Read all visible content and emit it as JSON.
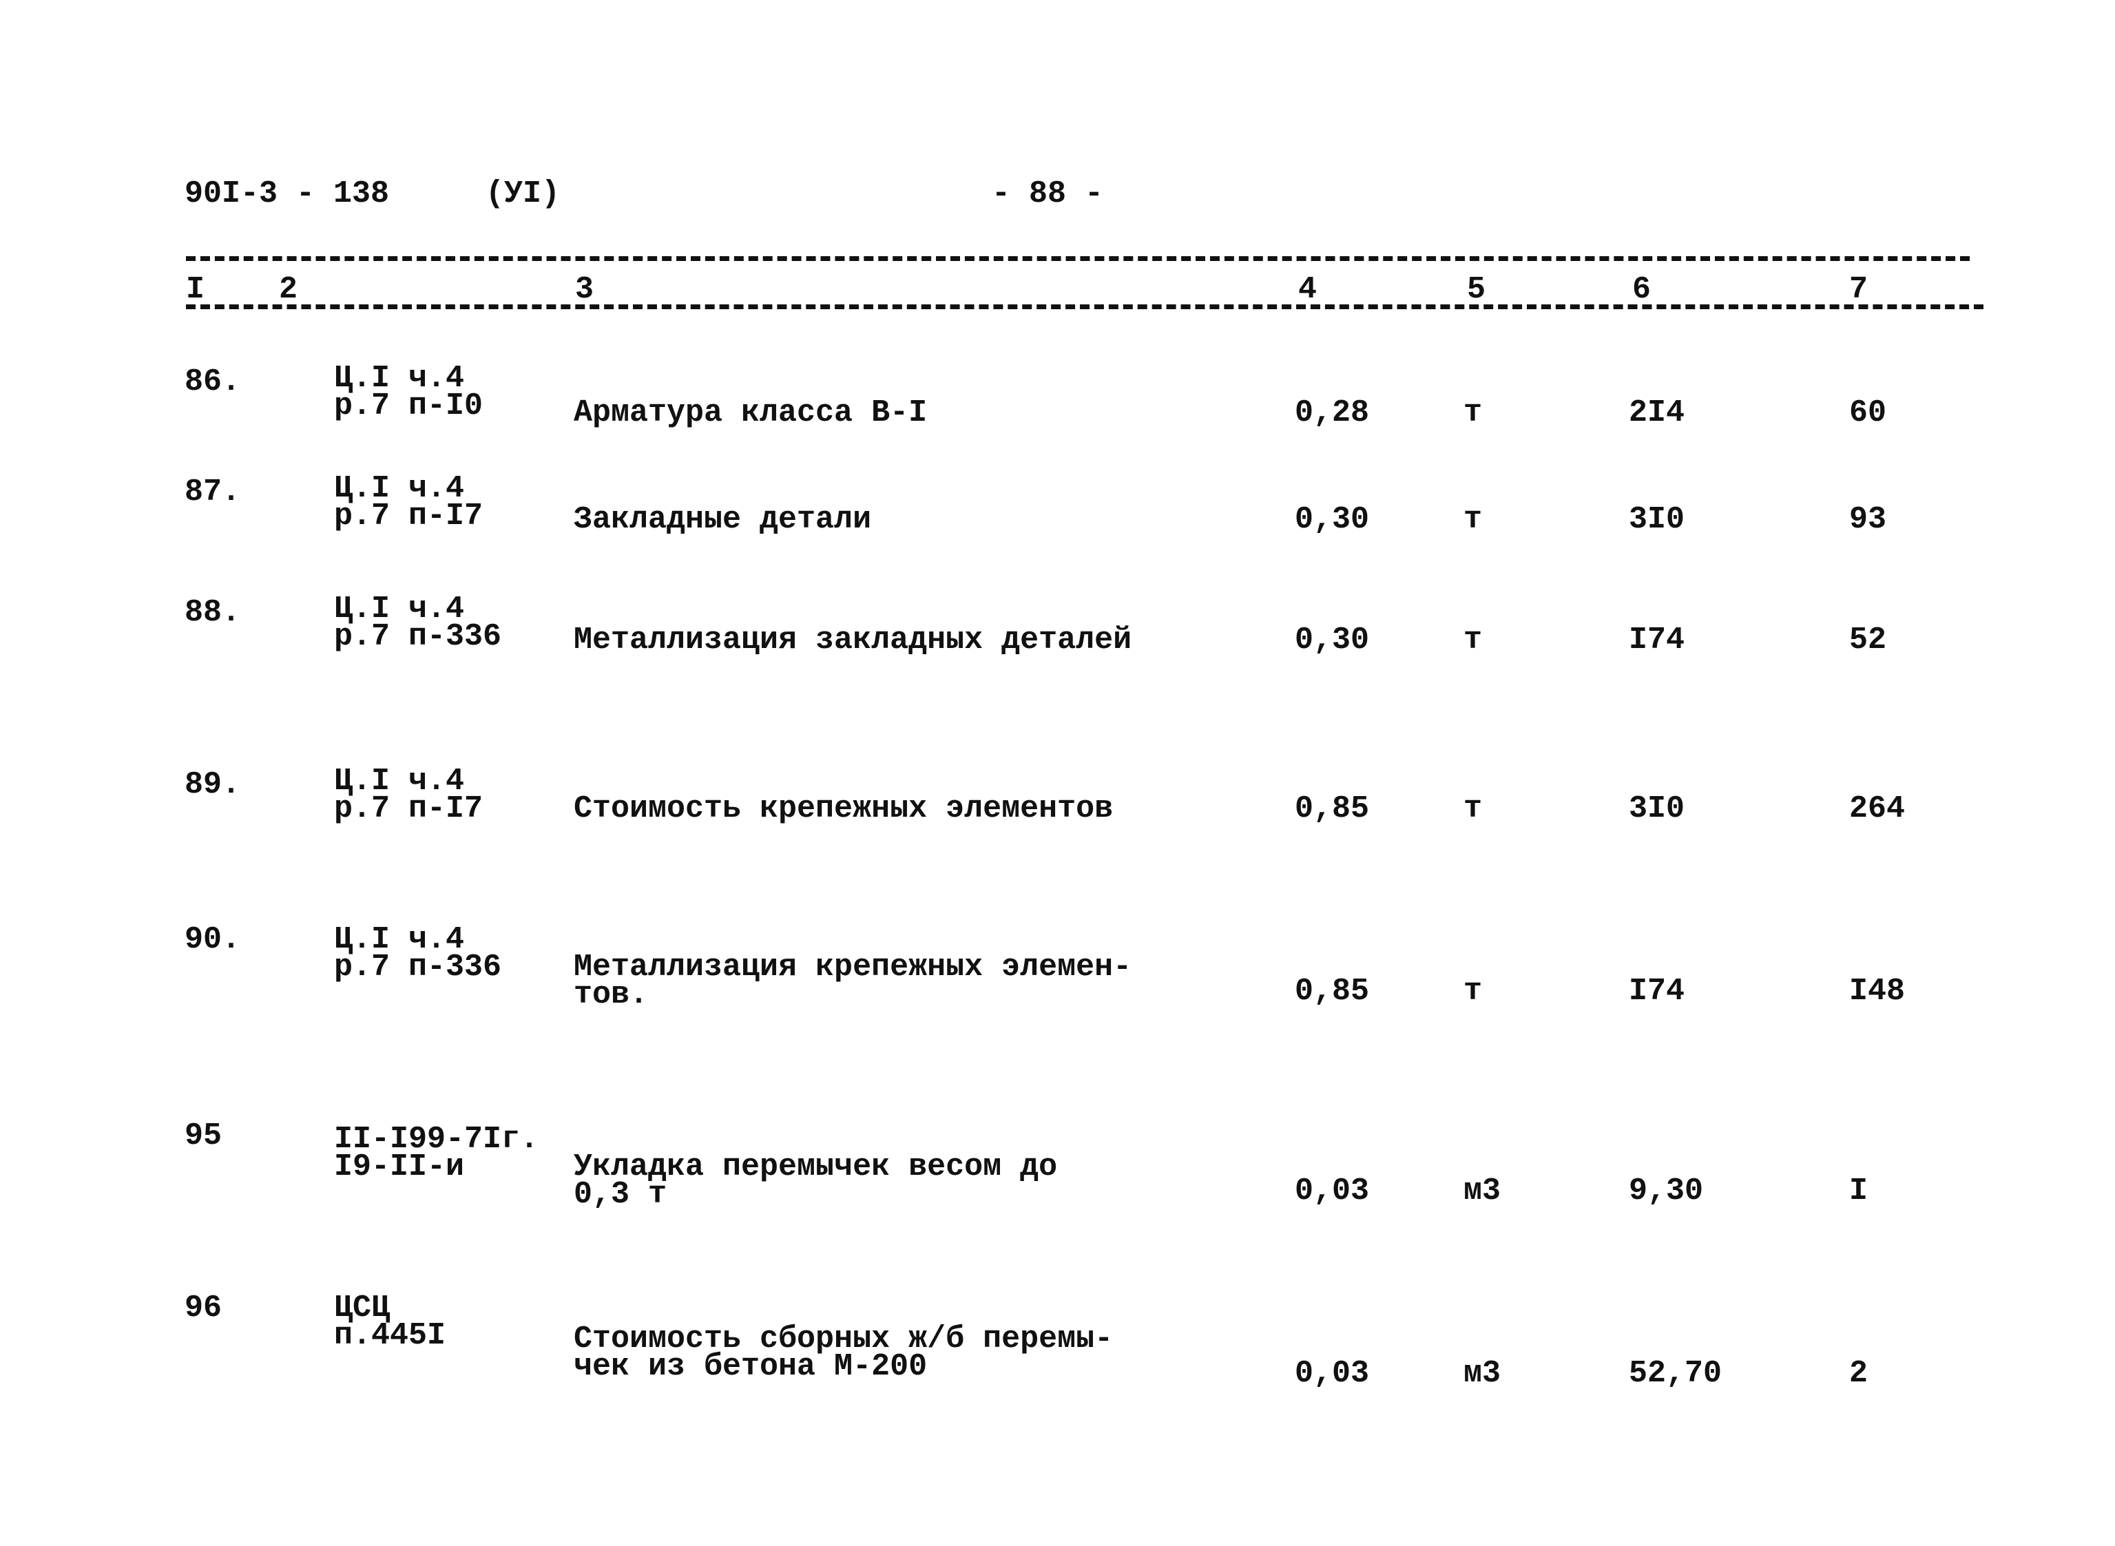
{
  "header": {
    "doc_code": "90I-3 - 138",
    "section": "(УI)",
    "page": "- 88 -"
  },
  "columns": [
    "I",
    "2",
    "3",
    "4",
    "5",
    "6",
    "7"
  ],
  "rows": [
    {
      "num": "86.",
      "ref": [
        "Ц.I ч.4",
        "р.7 п-I0"
      ],
      "desc": [
        "Арматура класса В-I"
      ],
      "qty": "0,28",
      "unit": "т",
      "price": "2I4",
      "total": "60"
    },
    {
      "num": "87.",
      "ref": [
        "Ц.I ч.4",
        "р.7 п-I7"
      ],
      "desc": [
        "Закладные детали"
      ],
      "qty": "0,30",
      "unit": "т",
      "price": "3I0",
      "total": "93"
    },
    {
      "num": "88.",
      "ref": [
        "Ц.I ч.4",
        "р.7 п-336"
      ],
      "desc": [
        "Металлизация закладных деталей"
      ],
      "qty": "0,30",
      "unit": "т",
      "price": "I74",
      "total": "52"
    },
    {
      "num": "89.",
      "ref": [
        "Ц.I ч.4",
        "р.7 п-I7"
      ],
      "desc": [
        "Стоимость крепежных элементов"
      ],
      "qty": "0,85",
      "unit": "т",
      "price": "3I0",
      "total": "264"
    },
    {
      "num": "90.",
      "ref": [
        "Ц.I ч.4",
        "р.7 п-336"
      ],
      "desc": [
        "Металлизация крепежных элемен-",
        "тов."
      ],
      "qty": "0,85",
      "unit": "т",
      "price": "I74",
      "total": "I48"
    },
    {
      "num": "95",
      "ref": [
        "II-I99-7Iг.",
        "I9-II-и"
      ],
      "desc": [
        "Укладка перемычек весом до",
        "0,3 т"
      ],
      "qty": "0,03",
      "unit": "м3",
      "price": "9,30",
      "total": "I"
    },
    {
      "num": "96",
      "ref": [
        "ЦСЦ",
        "п.445I"
      ],
      "desc": [
        "Стоимость сборных ж/б перемы-",
        "чек из бетона М-200"
      ],
      "qty": "0,03",
      "unit": "м3",
      "price": "52,70",
      "total": "2"
    }
  ]
}
